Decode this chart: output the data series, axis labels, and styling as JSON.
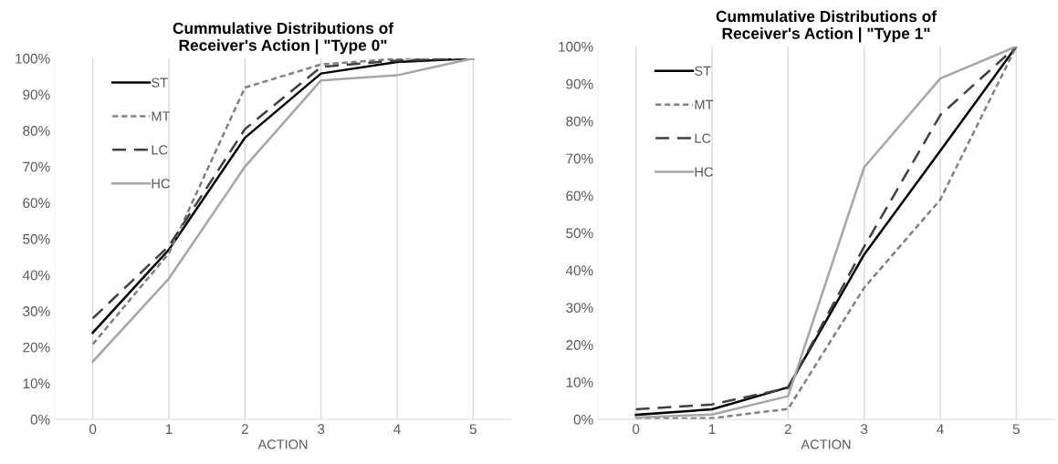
{
  "chart_data": [
    {
      "type": "line",
      "title": "Cummulative Distributions of\nReceiver's Action | \"Type 0\"",
      "xlabel": "ACTION",
      "categories": [
        "0",
        "1",
        "2",
        "3",
        "4",
        "5"
      ],
      "series": [
        {
          "name": "ST",
          "color": "#000000",
          "line_style": "solid",
          "values": [
            24,
            47,
            78,
            95.8,
            99,
            100
          ]
        },
        {
          "name": "MT",
          "color": "#808080",
          "line_style": "dotted",
          "values": [
            20.8,
            46,
            91.9,
            98.3,
            99.9,
            100
          ]
        },
        {
          "name": "LC",
          "color": "#404040",
          "line_style": "dashed",
          "values": [
            28,
            48,
            80.4,
            97.6,
            99.4,
            100
          ]
        },
        {
          "name": "HC",
          "color": "#a6a6a6",
          "line_style": "solid",
          "values": [
            16,
            39,
            70,
            93.9,
            95.3,
            100
          ]
        }
      ],
      "ylim": [
        0,
        100
      ],
      "yticks": [
        {
          "value": 0,
          "label": "0%"
        },
        {
          "value": 10,
          "label": "10%"
        },
        {
          "value": 20,
          "label": "20%"
        },
        {
          "value": 30,
          "label": "30%"
        },
        {
          "value": 40,
          "label": "40%"
        },
        {
          "value": 50,
          "label": "50%"
        },
        {
          "value": 60,
          "label": "60%"
        },
        {
          "value": 70,
          "label": "70%"
        },
        {
          "value": 80,
          "label": "80%"
        },
        {
          "value": 90,
          "label": "90%"
        },
        {
          "value": 100,
          "label": "100%"
        }
      ],
      "grid": "x",
      "legend": "top left",
      "marker": "none"
    },
    {
      "type": "line",
      "title": "Cummulative Distributions of\nReceiver's Action | \"Type 1\"",
      "xlabel": "ACTION",
      "categories": [
        "0",
        "1",
        "2",
        "3",
        "4",
        "5"
      ],
      "series": [
        {
          "name": "ST",
          "color": "#000000",
          "line_style": "solid",
          "values": [
            1.2,
            2.7,
            8.6,
            44.2,
            72,
            100
          ]
        },
        {
          "name": "MT",
          "color": "#808080",
          "line_style": "dotted",
          "values": [
            0.2,
            0.3,
            2.8,
            35.3,
            58.9,
            100
          ]
        },
        {
          "name": "LC",
          "color": "#404040",
          "line_style": "dashed",
          "values": [
            2.7,
            4,
            8.4,
            46.3,
            81.6,
            100
          ]
        },
        {
          "name": "HC",
          "color": "#a6a6a6",
          "line_style": "solid",
          "values": [
            0.5,
            1.3,
            6.2,
            67.6,
            91.4,
            100
          ]
        }
      ],
      "ylim": [
        0,
        100
      ],
      "yticks": [
        {
          "value": 0,
          "label": "0%"
        },
        {
          "value": 10,
          "label": "10%"
        },
        {
          "value": 20,
          "label": "20%"
        },
        {
          "value": 30,
          "label": "30%"
        },
        {
          "value": 40,
          "label": "40%"
        },
        {
          "value": 50,
          "label": "50%"
        },
        {
          "value": 60,
          "label": "60%"
        },
        {
          "value": 70,
          "label": "70%"
        },
        {
          "value": 80,
          "label": "80%"
        },
        {
          "value": 90,
          "label": "90%"
        },
        {
          "value": 100,
          "label": "100%"
        }
      ],
      "grid": "x",
      "legend": "top left",
      "marker": "none"
    }
  ]
}
